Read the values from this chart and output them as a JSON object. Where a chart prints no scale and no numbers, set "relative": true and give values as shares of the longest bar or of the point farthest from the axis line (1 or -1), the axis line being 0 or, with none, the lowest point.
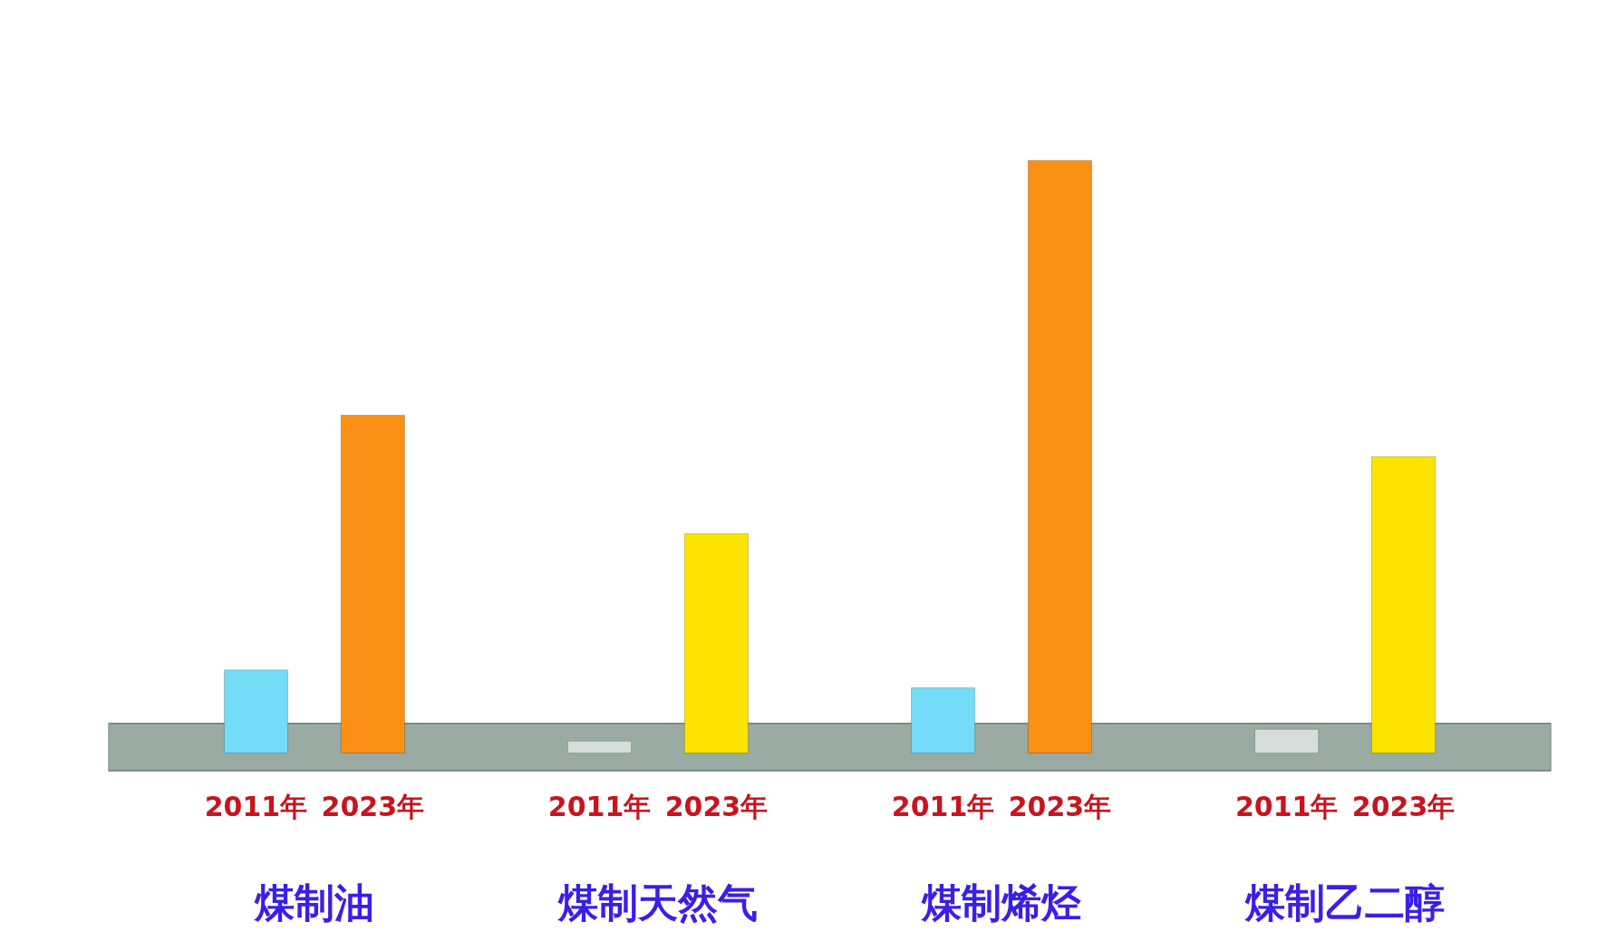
{
  "chart_data": {
    "type": "bar",
    "relative": true,
    "categories": [
      "煤制油",
      "煤制天然气",
      "煤制烯烃",
      "煤制乙二醇"
    ],
    "series": [
      {
        "name": "2011年",
        "colors": [
          "#75dcf8",
          "#d6dedb",
          "#75dcf8",
          "#d6dedb"
        ],
        "values": [
          0.14,
          0.02,
          0.11,
          0.04
        ]
      },
      {
        "name": "2023年",
        "colors": [
          "#fa9116",
          "#fde400",
          "#fa9116",
          "#fde400"
        ],
        "values": [
          0.57,
          0.37,
          1,
          0.5
        ]
      }
    ],
    "bands": [
      {
        "axis": "y",
        "from": -0.03,
        "to": 0.05,
        "color": "#9aaba4"
      }
    ]
  }
}
